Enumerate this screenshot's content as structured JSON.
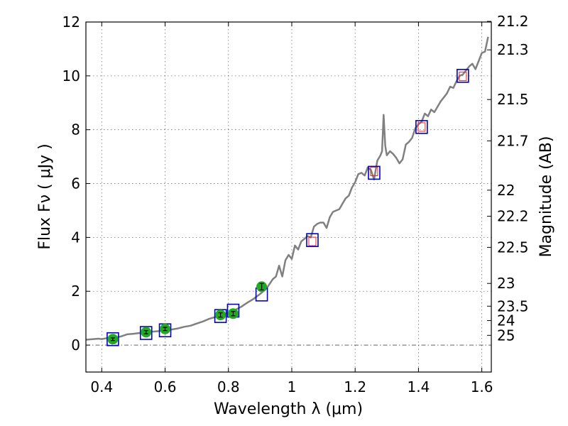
{
  "chart_data": {
    "type": "scatter",
    "title": "",
    "xlabel": "Wavelength  λ (μm)",
    "ylabel": "Flux  Fν  ( μJy )",
    "y2label": "Magnitude (AB)",
    "xlim": [
      0.35,
      1.63
    ],
    "ylim": [
      -1,
      12
    ],
    "grid": true,
    "x_ticks": [
      "0.4",
      "0.6",
      "0.8",
      "1",
      "1.2",
      "1.4",
      "1.6"
    ],
    "y_ticks": [
      "0",
      "2",
      "4",
      "6",
      "8",
      "10",
      "12"
    ],
    "y2_ticks": [
      {
        "label": "21.2",
        "mag": 21.2
      },
      {
        "label": "21.3",
        "mag": 21.3
      },
      {
        "label": "21.5",
        "mag": 21.5
      },
      {
        "label": "21.7",
        "mag": 21.7
      },
      {
        "label": "22",
        "mag": 22.0
      },
      {
        "label": "22.2",
        "mag": 22.2
      },
      {
        "label": "22.5",
        "mag": 22.5
      },
      {
        "label": "23",
        "mag": 23.0
      },
      {
        "label": "23.5",
        "mag": 23.5
      },
      {
        "label": "24",
        "mag": 24.0
      },
      {
        "label": "25",
        "mag": 25.0
      }
    ],
    "series": [
      {
        "kind": "spectrum-line",
        "color": "#808080",
        "points": [
          [
            0.35,
            0.2
          ],
          [
            0.37,
            0.22
          ],
          [
            0.39,
            0.24
          ],
          [
            0.4,
            0.22
          ],
          [
            0.42,
            0.27
          ],
          [
            0.44,
            0.27
          ],
          [
            0.46,
            0.32
          ],
          [
            0.48,
            0.4
          ],
          [
            0.5,
            0.42
          ],
          [
            0.52,
            0.45
          ],
          [
            0.54,
            0.44
          ],
          [
            0.56,
            0.5
          ],
          [
            0.58,
            0.52
          ],
          [
            0.6,
            0.56
          ],
          [
            0.62,
            0.58
          ],
          [
            0.64,
            0.62
          ],
          [
            0.66,
            0.68
          ],
          [
            0.68,
            0.72
          ],
          [
            0.7,
            0.8
          ],
          [
            0.72,
            0.88
          ],
          [
            0.74,
            0.98
          ],
          [
            0.76,
            1.05
          ],
          [
            0.78,
            1.12
          ],
          [
            0.8,
            1.2
          ],
          [
            0.82,
            1.3
          ],
          [
            0.84,
            1.42
          ],
          [
            0.86,
            1.58
          ],
          [
            0.88,
            1.72
          ],
          [
            0.9,
            1.9
          ],
          [
            0.92,
            2.1
          ],
          [
            0.94,
            2.45
          ],
          [
            0.95,
            2.55
          ],
          [
            0.96,
            2.95
          ],
          [
            0.97,
            2.55
          ],
          [
            0.98,
            3.15
          ],
          [
            0.99,
            3.35
          ],
          [
            1.0,
            3.2
          ],
          [
            1.01,
            3.7
          ],
          [
            1.02,
            3.55
          ],
          [
            1.03,
            3.85
          ],
          [
            1.04,
            3.95
          ],
          [
            1.05,
            4.05
          ],
          [
            1.06,
            4.0
          ],
          [
            1.07,
            4.4
          ],
          [
            1.08,
            4.5
          ],
          [
            1.09,
            4.55
          ],
          [
            1.1,
            4.55
          ],
          [
            1.11,
            4.35
          ],
          [
            1.12,
            4.75
          ],
          [
            1.13,
            4.95
          ],
          [
            1.14,
            5.0
          ],
          [
            1.15,
            5.05
          ],
          [
            1.16,
            5.25
          ],
          [
            1.17,
            5.45
          ],
          [
            1.18,
            5.55
          ],
          [
            1.19,
            5.85
          ],
          [
            1.2,
            6.05
          ],
          [
            1.21,
            6.35
          ],
          [
            1.22,
            6.4
          ],
          [
            1.23,
            6.3
          ],
          [
            1.24,
            6.6
          ],
          [
            1.25,
            6.5
          ],
          [
            1.26,
            6.15
          ],
          [
            1.27,
            6.85
          ],
          [
            1.28,
            7.05
          ],
          [
            1.285,
            7.2
          ],
          [
            1.29,
            8.55
          ],
          [
            1.295,
            7.4
          ],
          [
            1.3,
            7.05
          ],
          [
            1.31,
            7.2
          ],
          [
            1.32,
            7.1
          ],
          [
            1.33,
            6.95
          ],
          [
            1.34,
            6.75
          ],
          [
            1.35,
            6.9
          ],
          [
            1.36,
            7.45
          ],
          [
            1.37,
            7.55
          ],
          [
            1.38,
            7.7
          ],
          [
            1.39,
            8.05
          ],
          [
            1.4,
            8.2
          ],
          [
            1.41,
            8.3
          ],
          [
            1.42,
            8.6
          ],
          [
            1.43,
            8.5
          ],
          [
            1.44,
            8.75
          ],
          [
            1.45,
            8.65
          ],
          [
            1.46,
            8.85
          ],
          [
            1.47,
            9.05
          ],
          [
            1.48,
            9.2
          ],
          [
            1.49,
            9.35
          ],
          [
            1.5,
            9.6
          ],
          [
            1.51,
            9.55
          ],
          [
            1.52,
            9.8
          ],
          [
            1.53,
            10.0
          ],
          [
            1.54,
            10.05
          ],
          [
            1.55,
            10.2
          ],
          [
            1.56,
            10.35
          ],
          [
            1.57,
            10.45
          ],
          [
            1.58,
            10.25
          ],
          [
            1.59,
            10.55
          ],
          [
            1.6,
            10.85
          ],
          [
            1.61,
            10.9
          ],
          [
            1.62,
            11.45
          ]
        ]
      },
      {
        "kind": "photometry",
        "marker": "circle",
        "color": "#22aa22",
        "points": [
          {
            "x": 0.435,
            "y": 0.22,
            "err": 0.05
          },
          {
            "x": 0.54,
            "y": 0.48,
            "err": 0.06
          },
          {
            "x": 0.6,
            "y": 0.6,
            "err": 0.06
          },
          {
            "x": 0.775,
            "y": 1.12,
            "err": 0.08
          },
          {
            "x": 0.815,
            "y": 1.17,
            "err": 0.08
          },
          {
            "x": 0.905,
            "y": 2.17,
            "err": 0.12
          }
        ]
      },
      {
        "kind": "model-bandpass",
        "marker": "square",
        "color": "#0000cc",
        "points": [
          {
            "x": 0.435,
            "y": 0.22
          },
          {
            "x": 0.54,
            "y": 0.45
          },
          {
            "x": 0.6,
            "y": 0.55
          },
          {
            "x": 0.775,
            "y": 1.08
          },
          {
            "x": 0.815,
            "y": 1.28
          },
          {
            "x": 0.905,
            "y": 1.88
          },
          {
            "x": 1.065,
            "y": 3.9
          },
          {
            "x": 1.26,
            "y": 6.4
          },
          {
            "x": 1.41,
            "y": 8.1
          },
          {
            "x": 1.54,
            "y": 10.0
          }
        ]
      },
      {
        "kind": "upper-limit-boxes",
        "marker": "square",
        "color": "#ee2222",
        "points": [
          {
            "x": 1.065,
            "y": 3.85
          },
          {
            "x": 1.26,
            "y": 6.45
          },
          {
            "x": 1.41,
            "y": 8.1
          },
          {
            "x": 1.54,
            "y": 9.98
          }
        ]
      }
    ]
  }
}
